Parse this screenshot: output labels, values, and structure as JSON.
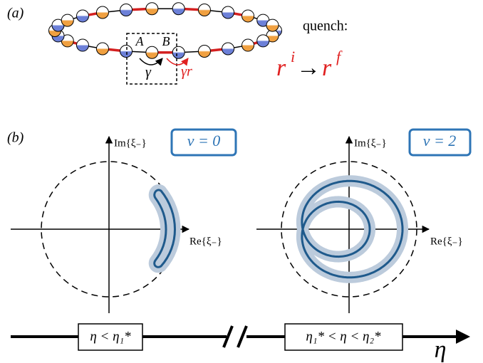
{
  "panel_a": {
    "label": "(a)",
    "site_a": "A",
    "site_b": "B",
    "hop_intra": "γ",
    "hop_inter": "γr",
    "quench_label": "quench:",
    "quench": {
      "initial": "r",
      "initial_sup": "i",
      "arrow": "→",
      "final": "r",
      "final_sup": "f"
    }
  },
  "panel_b": {
    "label": "(b)",
    "plots": [
      {
        "y_axis_label": "Im{ξ₋}",
        "x_axis_label": "Re{ξ₋}",
        "winding_label": "ν = 0"
      },
      {
        "y_axis_label": "Im{ξ₋}",
        "x_axis_label": "Re{ξ₋}",
        "winding_label": "ν = 2"
      }
    ],
    "regions": [
      "η < η₁*",
      "η₁* < η < η₂*"
    ],
    "axis_label": "η"
  }
}
